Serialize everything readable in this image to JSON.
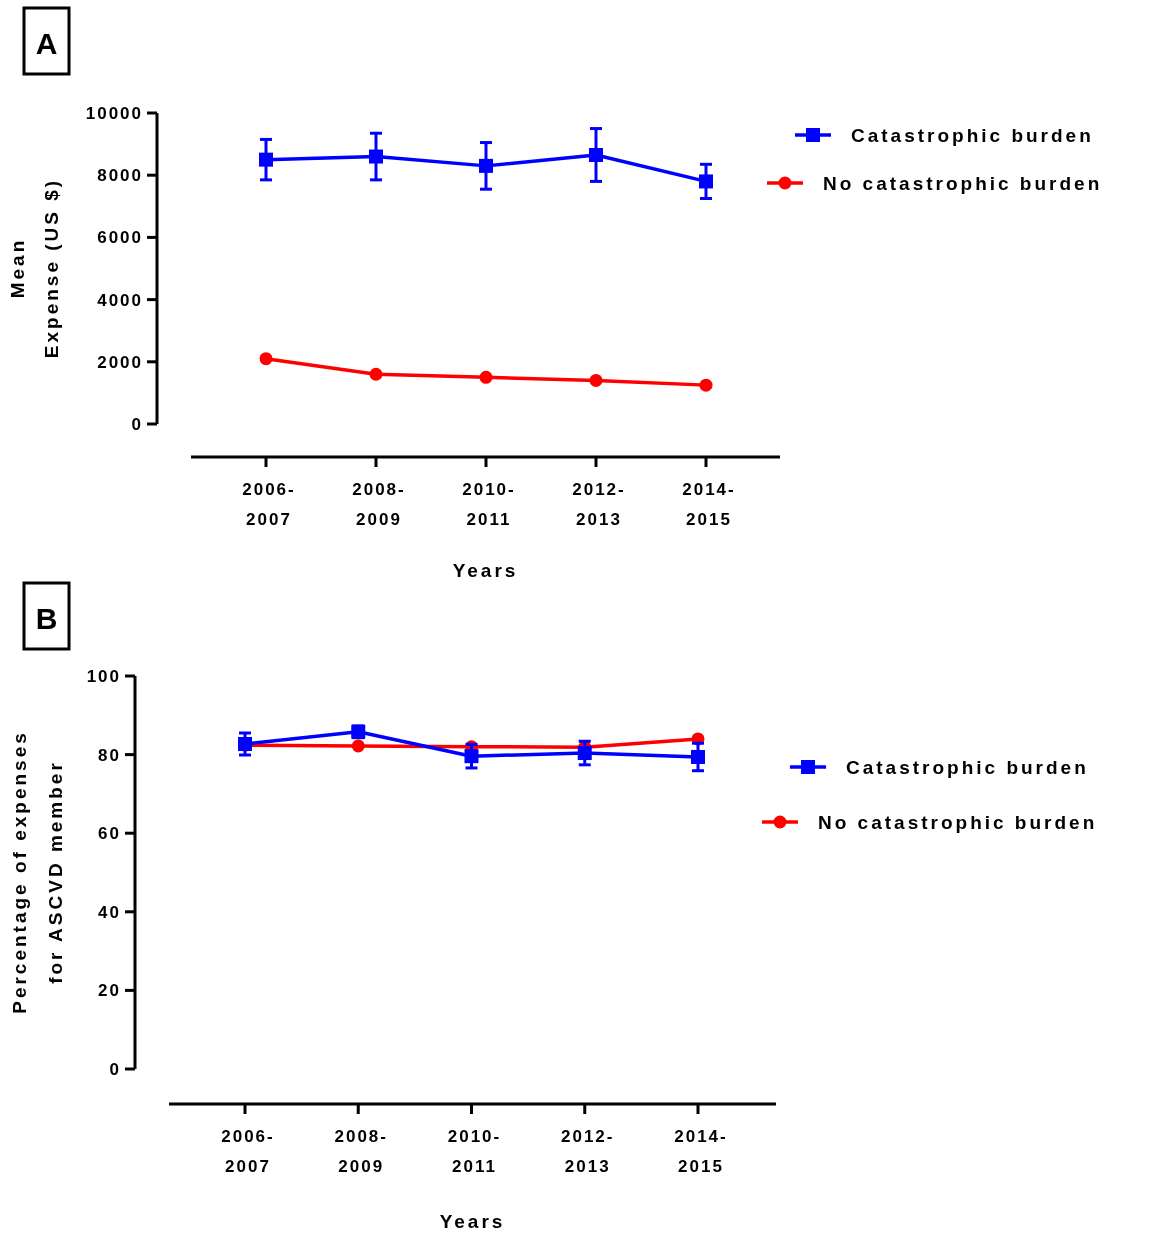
{
  "chart_data": [
    {
      "type": "line",
      "title": "A",
      "xlabel": "Years",
      "ylabel": "Mean\nExpense  (US $)",
      "categories": [
        "2006-\n2007",
        "2008-\n2009",
        "2010-\n2011",
        "2012-\n2013",
        "2014-\n2015"
      ],
      "ylim": [
        0,
        10000
      ],
      "yticks": [
        0,
        2000,
        4000,
        6000,
        8000,
        10000
      ],
      "grid": false,
      "legend": "top right",
      "series": [
        {
          "name": "Catastrophic burden",
          "color": "#0000ff",
          "marker": "square",
          "values": [
            8500,
            8600,
            8300,
            8650,
            7800
          ],
          "errors": [
            650,
            750,
            750,
            850,
            550
          ]
        },
        {
          "name": "No catastrophic burden",
          "color": "#ff0000",
          "marker": "circle",
          "values": [
            2100,
            1600,
            1500,
            1400,
            1250
          ]
        }
      ]
    },
    {
      "type": "line",
      "title": "B",
      "xlabel": "Years",
      "ylabel": "Percentage of expenses\nfor ASCVD member",
      "categories": [
        "2006-\n2007",
        "2008-\n2009",
        "2010-\n2011",
        "2012-\n2013",
        "2014-\n2015"
      ],
      "ylim": [
        0,
        100
      ],
      "yticks": [
        0,
        20,
        40,
        60,
        80,
        100
      ],
      "grid": false,
      "legend": "right",
      "series": [
        {
          "name": "Catastrophic burden",
          "color": "#0000ff",
          "marker": "square",
          "values": [
            82.7,
            85.8,
            79.6,
            80.4,
            79.4
          ],
          "errors": [
            2.8,
            1.5,
            3,
            3,
            3.5
          ]
        },
        {
          "name": "No catastrophic burden",
          "color": "#ff0000",
          "marker": "circle",
          "values": [
            82.4,
            82.2,
            82,
            81.9,
            84
          ]
        }
      ]
    }
  ]
}
